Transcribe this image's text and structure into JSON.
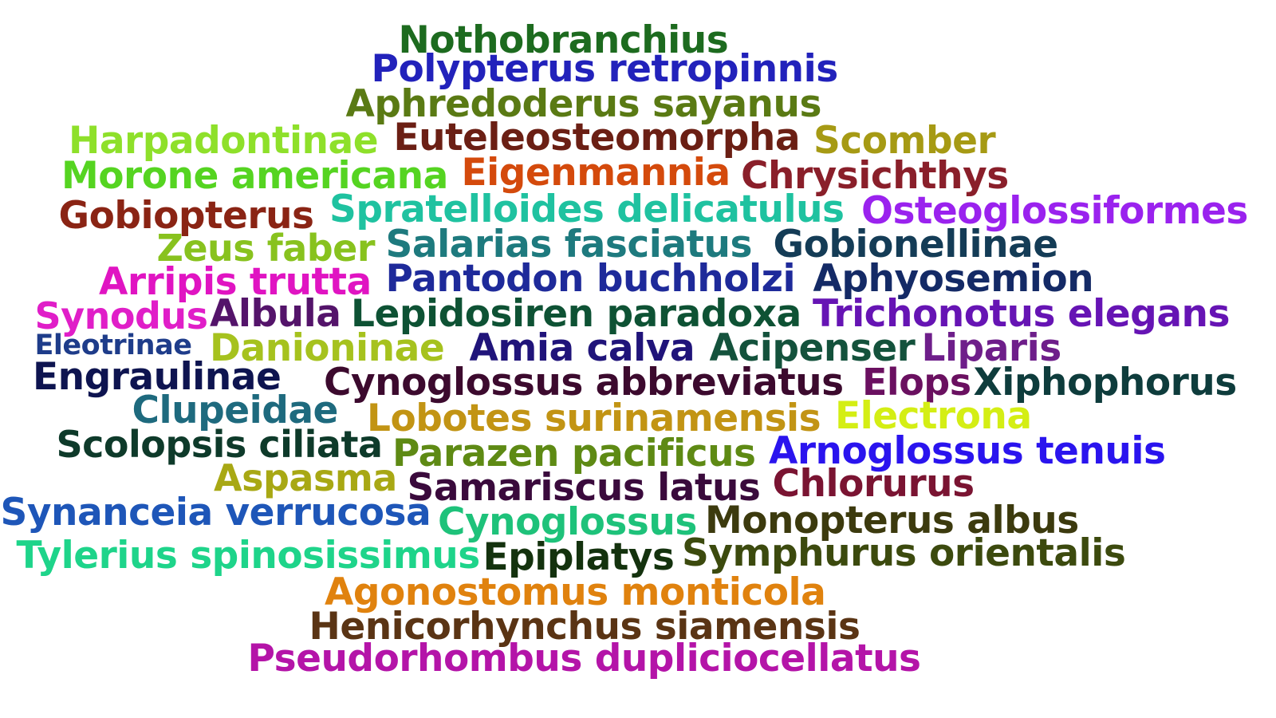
{
  "words": [
    {
      "text": "Nothobranchius",
      "color": "#1d6b1f"
    },
    {
      "text": "Polypterus retropinnis",
      "color": "#2222bb"
    },
    {
      "text": "Aphredoderus sayanus",
      "color": "#5a7a14"
    },
    {
      "text": "Harpadontinae",
      "color": "#8ee02a"
    },
    {
      "text": "Euteleosteomorpha",
      "color": "#6b1f14"
    },
    {
      "text": "Scomber",
      "color": "#a69a14"
    },
    {
      "text": "Morone americana",
      "color": "#55d421"
    },
    {
      "text": "Eigenmannia",
      "color": "#d44a0c"
    },
    {
      "text": "Chrysichthys",
      "color": "#8a1f2a"
    },
    {
      "text": "Gobiopterus",
      "color": "#8a2414"
    },
    {
      "text": "Spratelloides delicatulus",
      "color": "#1fc2a0"
    },
    {
      "text": "Osteoglossiformes",
      "color": "#9a22ee"
    },
    {
      "text": "Zeus faber",
      "color": "#88c21e"
    },
    {
      "text": "Salarias fasciatus",
      "color": "#1e7a7e"
    },
    {
      "text": "Gobionellinae",
      "color": "#143c56"
    },
    {
      "text": "Arripis trutta",
      "color": "#e014c2"
    },
    {
      "text": "Pantodon buchholzi",
      "color": "#1e2a9a"
    },
    {
      "text": "Aphyosemion",
      "color": "#142a66"
    },
    {
      "text": "Synodus",
      "color": "#e01ec8"
    },
    {
      "text": "Albula",
      "color": "#54146a"
    },
    {
      "text": "Lepidosiren paradoxa",
      "color": "#0e5234"
    },
    {
      "text": "Trichonotus elegans",
      "color": "#6614b4"
    },
    {
      "text": "Eleotrinae",
      "color": "#1e3c8a"
    },
    {
      "text": "Danioninae",
      "color": "#a6c21e"
    },
    {
      "text": "Amia calva",
      "color": "#20147a"
    },
    {
      "text": "Acipenser",
      "color": "#14523c"
    },
    {
      "text": "Liparis",
      "color": "#6e1e8a"
    },
    {
      "text": "Engraulinae",
      "color": "#0e1450"
    },
    {
      "text": "Cynoglossus abbreviatus",
      "color": "#3c0a2e"
    },
    {
      "text": "Elops",
      "color": "#6a1060"
    },
    {
      "text": "Xiphophorus",
      "color": "#0e3c3c"
    },
    {
      "text": "Clupeidae",
      "color": "#1e6a7e"
    },
    {
      "text": "Lobotes surinamensis",
      "color": "#c29414"
    },
    {
      "text": "Electrona",
      "color": "#d4ee14"
    },
    {
      "text": "Scolopsis ciliata",
      "color": "#0e3a2a"
    },
    {
      "text": "Parazen pacificus",
      "color": "#5e8a14"
    },
    {
      "text": "Arnoglossus tenuis",
      "color": "#2a14ee"
    },
    {
      "text": "Aspasma",
      "color": "#a8a814"
    },
    {
      "text": "Samariscus latus",
      "color": "#3a0a3c"
    },
    {
      "text": "Chlorurus",
      "color": "#7a1432"
    },
    {
      "text": "Synanceia verrucosa",
      "color": "#1e56b8"
    },
    {
      "text": "Cynoglossus",
      "color": "#1ec27a"
    },
    {
      "text": "Monopterus albus",
      "color": "#3c3a0e"
    },
    {
      "text": "Tylerius spinosissimus",
      "color": "#1ed48a"
    },
    {
      "text": "Epiplatys",
      "color": "#14320e"
    },
    {
      "text": "Symphurus orientalis",
      "color": "#3c4a0e"
    },
    {
      "text": "Agonostomus monticola",
      "color": "#e0820e"
    },
    {
      "text": "Henicorhynchus siamensis",
      "color": "#5a3414"
    },
    {
      "text": "Pseudorhombus dupliciocellatus",
      "color": "#b414a8"
    }
  ]
}
